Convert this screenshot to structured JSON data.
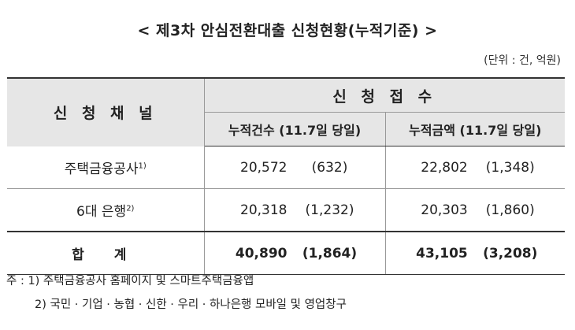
{
  "title": "< 제3차 안심전환대출 신청현황(누적기준) >",
  "unit": "(단위 : 건, 억원)",
  "table": {
    "header_channel": "신 청 채 널",
    "header_received": "신 청 접 수",
    "header_count": "누적건수 (11.7일 당일)",
    "header_amount": "누적금액 (11.7일 당일)",
    "rows": [
      {
        "channel": "주택금융공사",
        "sup": "1)",
        "count": "20,572",
        "count_day": "(632)",
        "amount": "22,802",
        "amount_day": "(1,348)"
      },
      {
        "channel": "6대 은행",
        "sup": "2)",
        "count": "20,318",
        "count_day": "(1,232)",
        "amount": "20,303",
        "amount_day": "(1,860)"
      }
    ],
    "total": {
      "channel": "합 계",
      "count": "40,890",
      "count_day": "(1,864)",
      "amount": "43,105",
      "amount_day": "(3,208)"
    }
  },
  "notes": {
    "note1": "주 : 1) 주택금융공사 홈페이지 및 스마트주택금융앱",
    "note2": "2) 국민 · 기업 · 농협 · 신한 · 우리 · 하나은행 모바일 및 영업창구"
  }
}
